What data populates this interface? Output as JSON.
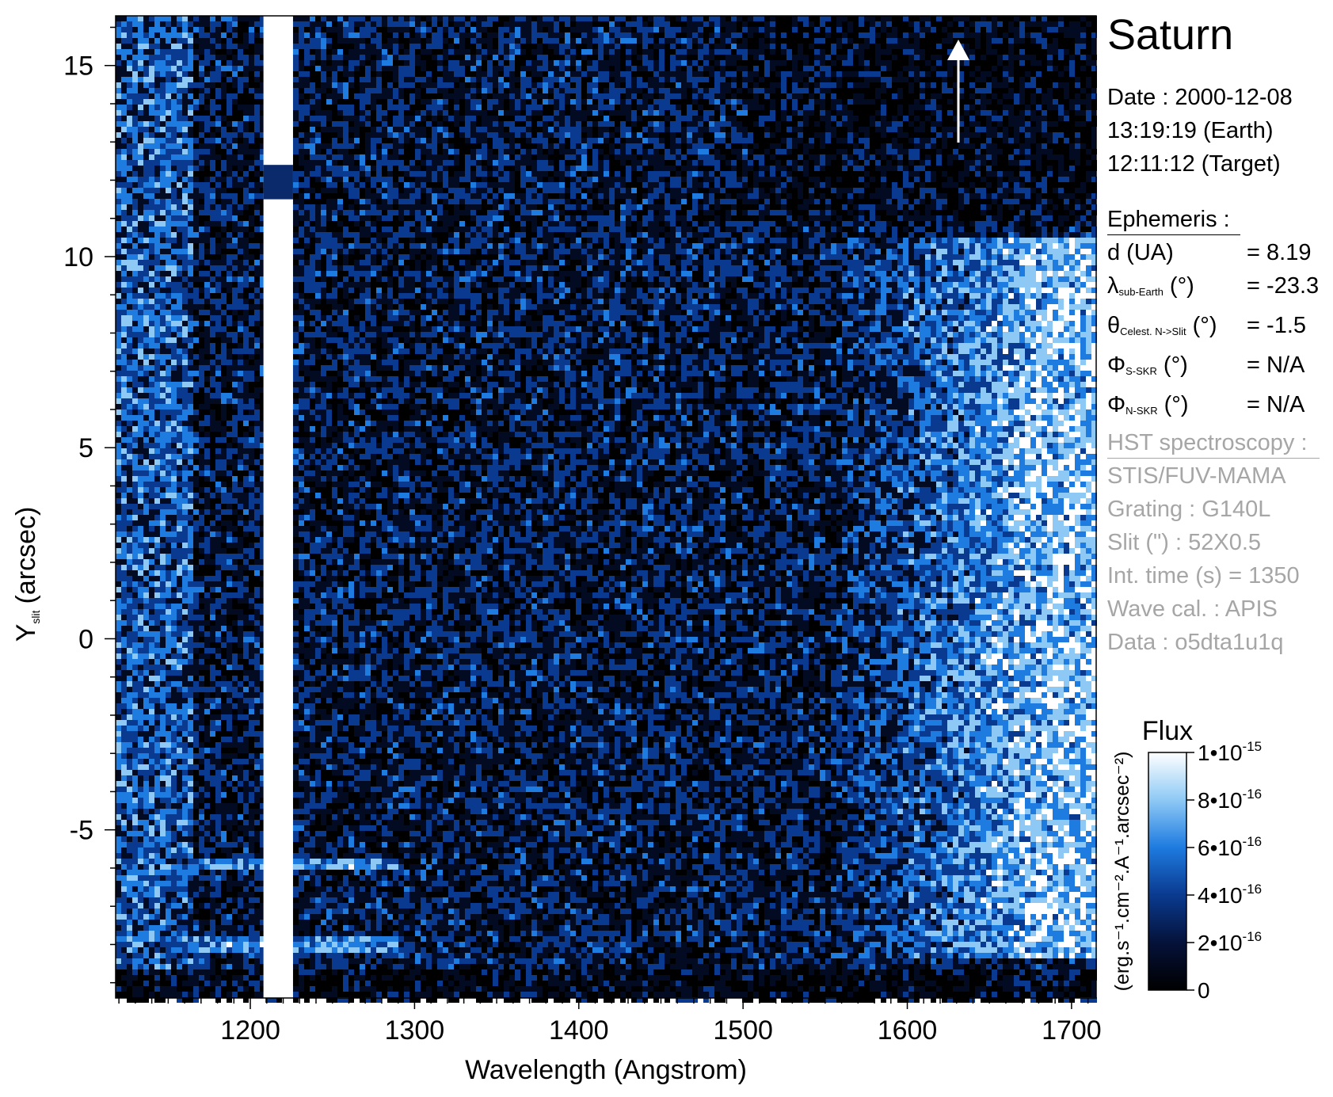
{
  "chart_data": {
    "type": "heatmap",
    "title": "Saturn",
    "xlabel": "Wavelength (Angstrom)",
    "ylabel": "Y",
    "ylabel_sub": "slit",
    "ylabel_unit": "(arcsec)",
    "xlim": [
      1118,
      1715
    ],
    "ylim": [
      -9.4,
      16.3
    ],
    "x_ticks": [
      "1200",
      "1300",
      "1400",
      "1500",
      "1600",
      "1700"
    ],
    "x_tick_values": [
      1200,
      1300,
      1400,
      1500,
      1600,
      1700
    ],
    "y_ticks": [
      "15",
      "10",
      "5",
      "0",
      "-5"
    ],
    "y_tick_values": [
      15,
      10,
      5,
      0,
      -5
    ],
    "colormap": [
      "#000000",
      "#05123a",
      "#0a3a8f",
      "#1e7be0",
      "#8ec9f5",
      "#ffffff"
    ],
    "features": [
      {
        "name": "Lyman-alpha",
        "x": [
          1208,
          1226
        ],
        "y": [
          -9.4,
          16.3
        ]
      },
      {
        "name": "band",
        "x": [
          1160,
          1290
        ],
        "y": [
          -8.1,
          -7.7
        ]
      },
      {
        "name": "band",
        "x": [
          1160,
          1290
        ],
        "y": [
          -6.0,
          -5.7
        ]
      },
      {
        "name": "disk",
        "x": [
          1550,
          1715
        ],
        "y": [
          -8.3,
          10.5
        ]
      }
    ],
    "colorbar": {
      "title": "Flux",
      "unit_label": "(erg.s⁻¹.cm⁻².A⁻¹.arcsec⁻²)",
      "range": [
        0,
        1e-15
      ],
      "ticks": [
        {
          "mantissa": "0",
          "exp": ""
        },
        {
          "mantissa": "2•10",
          "exp": "-16"
        },
        {
          "mantissa": "4•10",
          "exp": "-16"
        },
        {
          "mantissa": "6•10",
          "exp": "-16"
        },
        {
          "mantissa": "8•10",
          "exp": "-16"
        },
        {
          "mantissa": "1•10",
          "exp": "-15"
        }
      ],
      "tick_values": [
        0,
        2e-16,
        4e-16,
        6e-16,
        8e-16,
        1e-15
      ]
    }
  },
  "info": {
    "date_line": "Date : 2000-12-08",
    "earth_time": "13:19:19 (Earth)",
    "target_time": "12:11:12 (Target)",
    "ephemeris_header": "Ephemeris :",
    "rows": [
      {
        "symbol": "d (UA)",
        "sub": "",
        "unit": "",
        "value": "= 8.19"
      },
      {
        "symbol": "λ",
        "sub": "sub-Earth",
        "unit": "(°)",
        "value": "= -23.3"
      },
      {
        "symbol": "θ",
        "sub": "Celest. N->Slit",
        "unit": "(°)",
        "value": "= -1.5"
      },
      {
        "symbol": "Φ",
        "sub": "S-SKR",
        "unit": "(°)",
        "value": "= N/A"
      },
      {
        "symbol": "Φ",
        "sub": "N-SKR",
        "unit": "(°)",
        "value": "= N/A"
      }
    ],
    "hst_header": "HST spectroscopy :",
    "hst_lines": [
      "STIS/FUV-MAMA",
      "Grating : G140L",
      "Slit (\") : 52X0.5",
      "Int. time (s) = 1350",
      "Wave cal. : APIS",
      "Data : o5dta1u1q"
    ]
  }
}
